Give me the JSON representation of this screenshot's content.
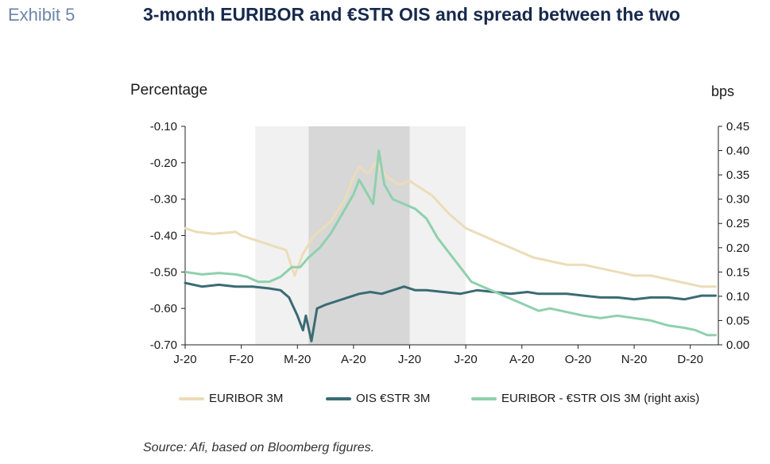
{
  "header": {
    "exhibit": "Exhibit 5",
    "title": "3-month EURIBOR and €STR OIS and spread between the two"
  },
  "axes": {
    "left_label": "Percentage",
    "right_label": "bps"
  },
  "footer": {
    "source": "Source: Afi, based on Bloomberg figures."
  },
  "chart_data": {
    "type": "line",
    "x_ticks": [
      "J-20",
      "F-20",
      "M-20",
      "A-20",
      "J-20",
      "J-20",
      "A-20",
      "O-20",
      "N-20",
      "D-20"
    ],
    "y_left": {
      "range": [
        -0.7,
        -0.1
      ],
      "ticks": [
        "-0.10",
        "-0.20",
        "-0.30",
        "-0.40",
        "-0.50",
        "-0.60",
        "-0.70"
      ]
    },
    "y_right": {
      "range": [
        0.0,
        0.45
      ],
      "ticks": [
        "0.45",
        "0.40",
        "0.35",
        "0.30",
        "0.25",
        "0.20",
        "0.15",
        "0.10",
        "0.05",
        "0.00"
      ]
    },
    "shaded_regions": [
      {
        "from": 1.25,
        "to": 5.0,
        "shade": "light"
      },
      {
        "from": 2.2,
        "to": 4.0,
        "shade": "dark"
      }
    ],
    "series": [
      {
        "name": "EURIBOR 3M",
        "axis": "left",
        "color": "#ecdcb8",
        "points": [
          [
            0,
            -0.38
          ],
          [
            0.2,
            -0.39
          ],
          [
            0.5,
            -0.395
          ],
          [
            0.9,
            -0.39
          ],
          [
            1.0,
            -0.4
          ],
          [
            1.2,
            -0.41
          ],
          [
            1.4,
            -0.42
          ],
          [
            1.6,
            -0.43
          ],
          [
            1.8,
            -0.44
          ],
          [
            1.95,
            -0.51
          ],
          [
            2.1,
            -0.45
          ],
          [
            2.3,
            -0.4
          ],
          [
            2.6,
            -0.36
          ],
          [
            2.85,
            -0.3
          ],
          [
            3.0,
            -0.24
          ],
          [
            3.1,
            -0.21
          ],
          [
            3.25,
            -0.23
          ],
          [
            3.4,
            -0.2
          ],
          [
            3.6,
            -0.24
          ],
          [
            3.8,
            -0.26
          ],
          [
            4.0,
            -0.25
          ],
          [
            4.2,
            -0.27
          ],
          [
            4.4,
            -0.29
          ],
          [
            4.7,
            -0.34
          ],
          [
            5.0,
            -0.38
          ],
          [
            5.3,
            -0.4
          ],
          [
            5.6,
            -0.42
          ],
          [
            5.9,
            -0.44
          ],
          [
            6.2,
            -0.46
          ],
          [
            6.5,
            -0.47
          ],
          [
            6.8,
            -0.48
          ],
          [
            7.1,
            -0.48
          ],
          [
            7.4,
            -0.49
          ],
          [
            7.7,
            -0.5
          ],
          [
            8.0,
            -0.51
          ],
          [
            8.3,
            -0.51
          ],
          [
            8.6,
            -0.52
          ],
          [
            8.9,
            -0.53
          ],
          [
            9.2,
            -0.54
          ],
          [
            9.45,
            -0.54
          ]
        ]
      },
      {
        "name": "OIS €STR 3M",
        "axis": "left",
        "color": "#3a6b74",
        "points": [
          [
            0,
            -0.53
          ],
          [
            0.3,
            -0.54
          ],
          [
            0.6,
            -0.535
          ],
          [
            0.9,
            -0.54
          ],
          [
            1.2,
            -0.54
          ],
          [
            1.5,
            -0.545
          ],
          [
            1.7,
            -0.55
          ],
          [
            1.85,
            -0.57
          ],
          [
            2.0,
            -0.62
          ],
          [
            2.1,
            -0.66
          ],
          [
            2.15,
            -0.62
          ],
          [
            2.25,
            -0.69
          ],
          [
            2.35,
            -0.6
          ],
          [
            2.5,
            -0.59
          ],
          [
            2.7,
            -0.58
          ],
          [
            2.9,
            -0.57
          ],
          [
            3.1,
            -0.56
          ],
          [
            3.3,
            -0.555
          ],
          [
            3.5,
            -0.56
          ],
          [
            3.7,
            -0.55
          ],
          [
            3.9,
            -0.54
          ],
          [
            4.1,
            -0.55
          ],
          [
            4.3,
            -0.55
          ],
          [
            4.6,
            -0.555
          ],
          [
            4.9,
            -0.56
          ],
          [
            5.2,
            -0.55
          ],
          [
            5.5,
            -0.555
          ],
          [
            5.8,
            -0.56
          ],
          [
            6.1,
            -0.555
          ],
          [
            6.3,
            -0.56
          ],
          [
            6.5,
            -0.56
          ],
          [
            6.8,
            -0.56
          ],
          [
            7.1,
            -0.565
          ],
          [
            7.4,
            -0.57
          ],
          [
            7.7,
            -0.57
          ],
          [
            8.0,
            -0.575
          ],
          [
            8.3,
            -0.57
          ],
          [
            8.6,
            -0.57
          ],
          [
            8.9,
            -0.575
          ],
          [
            9.2,
            -0.565
          ],
          [
            9.45,
            -0.565
          ]
        ]
      },
      {
        "name": "EURIBOR - €STR OIS 3M (right axis)",
        "axis": "right",
        "color": "#8fd0ad",
        "points": [
          [
            0,
            0.15
          ],
          [
            0.3,
            0.145
          ],
          [
            0.6,
            0.148
          ],
          [
            0.9,
            0.145
          ],
          [
            1.1,
            0.14
          ],
          [
            1.3,
            0.13
          ],
          [
            1.5,
            0.13
          ],
          [
            1.7,
            0.14
          ],
          [
            1.9,
            0.16
          ],
          [
            2.05,
            0.16
          ],
          [
            2.2,
            0.18
          ],
          [
            2.4,
            0.2
          ],
          [
            2.6,
            0.23
          ],
          [
            2.8,
            0.27
          ],
          [
            3.0,
            0.31
          ],
          [
            3.1,
            0.34
          ],
          [
            3.2,
            0.32
          ],
          [
            3.35,
            0.29
          ],
          [
            3.45,
            0.4
          ],
          [
            3.55,
            0.33
          ],
          [
            3.7,
            0.3
          ],
          [
            3.9,
            0.29
          ],
          [
            4.1,
            0.28
          ],
          [
            4.3,
            0.26
          ],
          [
            4.5,
            0.22
          ],
          [
            4.7,
            0.19
          ],
          [
            4.9,
            0.16
          ],
          [
            5.1,
            0.13
          ],
          [
            5.3,
            0.12
          ],
          [
            5.5,
            0.11
          ],
          [
            5.7,
            0.1
          ],
          [
            5.9,
            0.09
          ],
          [
            6.1,
            0.08
          ],
          [
            6.3,
            0.07
          ],
          [
            6.5,
            0.075
          ],
          [
            6.7,
            0.07
          ],
          [
            6.9,
            0.065
          ],
          [
            7.1,
            0.06
          ],
          [
            7.4,
            0.055
          ],
          [
            7.7,
            0.06
          ],
          [
            8.0,
            0.055
          ],
          [
            8.3,
            0.05
          ],
          [
            8.6,
            0.04
          ],
          [
            8.9,
            0.035
          ],
          [
            9.1,
            0.03
          ],
          [
            9.3,
            0.02
          ],
          [
            9.45,
            0.02
          ]
        ]
      }
    ]
  }
}
